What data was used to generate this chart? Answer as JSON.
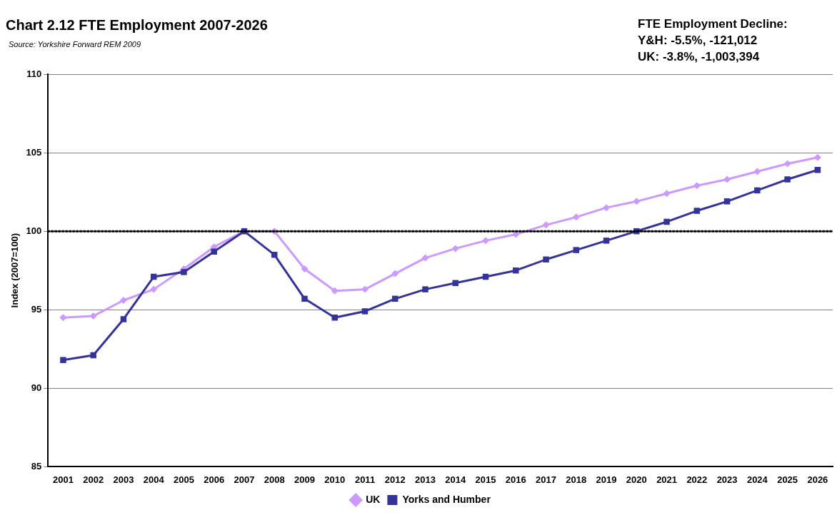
{
  "chart_data": {
    "type": "line",
    "title": "Chart 2.12 FTE Employment 2007-2026",
    "ylabel": "Index (2007=100)",
    "annotations": [
      "Source: Yorkshire Forward REM 2009",
      "FTE Employment Decline:",
      "Y&H: -5.5%, -121,012",
      "UK: -3.8%, -1,003,394"
    ],
    "categories": [
      "2001",
      "2002",
      "2003",
      "2004",
      "2005",
      "2006",
      "2007",
      "2008",
      "2009",
      "2010",
      "2011",
      "2012",
      "2013",
      "2014",
      "2015",
      "2016",
      "2017",
      "2018",
      "2019",
      "2020",
      "2021",
      "2022",
      "2023",
      "2024",
      "2025",
      "2026"
    ],
    "series": [
      {
        "name": "UK",
        "color": "#cc99ff",
        "marker": "diamond",
        "values": [
          94.5,
          94.6,
          95.6,
          96.3,
          97.6,
          99.0,
          100,
          100,
          97.6,
          96.2,
          96.3,
          97.3,
          98.3,
          98.9,
          99.4,
          99.8,
          100.4,
          100.9,
          101.5,
          101.9,
          102.4,
          102.9,
          103.3,
          103.8,
          104.3,
          104.7
        ]
      },
      {
        "name": "Yorks and Humber",
        "color": "#333399",
        "marker": "square",
        "values": [
          91.8,
          92.1,
          94.4,
          97.1,
          97.4,
          98.7,
          100,
          98.5,
          95.7,
          94.5,
          94.9,
          95.7,
          96.3,
          96.7,
          97.1,
          97.5,
          98.2,
          98.8,
          99.4,
          100.0,
          100.6,
          101.3,
          101.9,
          102.6,
          103.3,
          103.9
        ]
      }
    ],
    "ylim": [
      85,
      110
    ],
    "yticks": [
      85,
      90,
      95,
      100,
      105,
      110
    ],
    "grid": "y",
    "legend": "bottom",
    "ref_lines": [
      {
        "axis": "y",
        "value": 100,
        "color": "#000000",
        "line_style": "dotted"
      }
    ]
  }
}
